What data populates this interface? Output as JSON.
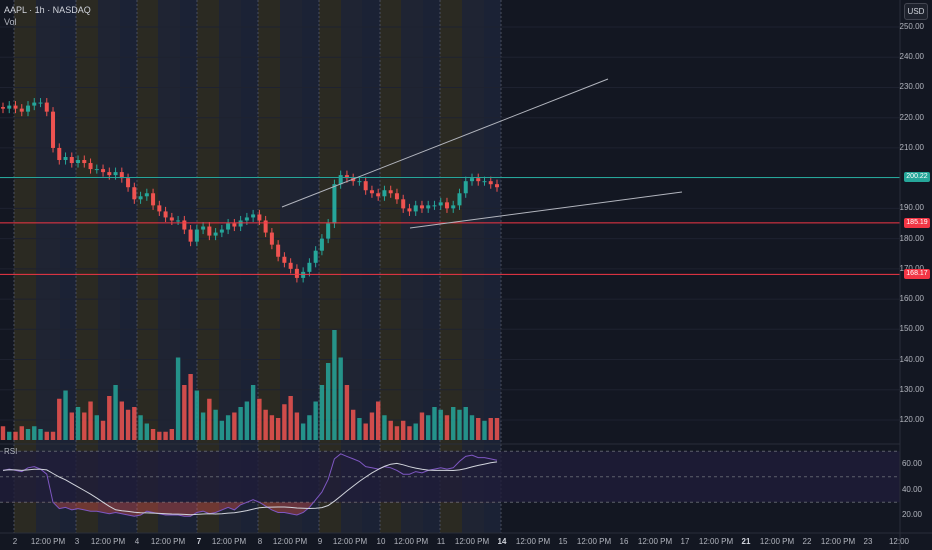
{
  "header": {
    "symbol_line": "AAPL · 1h · NASDAQ",
    "volume_label": "Vol"
  },
  "currency_button": "USD",
  "rsi_label": "RSI",
  "price_axis": [
    "250.00",
    "240.00",
    "230.00",
    "220.00",
    "210.00",
    "190.00",
    "180.00",
    "170.00",
    "160.00",
    "150.00",
    "140.00",
    "130.00",
    "120.00"
  ],
  "rsi_axis": [
    "60.00",
    "40.00",
    "20.00"
  ],
  "price_tags": [
    {
      "label": "200.22",
      "value": 200.22,
      "color": "#26a69a"
    },
    {
      "label": "185.19",
      "value": 185.19,
      "color": "#f23645"
    },
    {
      "label": "168.17",
      "value": 168.17,
      "color": "#f23645"
    }
  ],
  "time_axis": [
    "2",
    "12:00 PM",
    "3",
    "12:00 PM",
    "4",
    "12:00 PM",
    "7",
    "12:00 PM",
    "8",
    "12:00 PM",
    "9",
    "12:00 PM",
    "10",
    "12:00 PM",
    "11",
    "12:00 PM",
    "14",
    "12:00 PM",
    "15",
    "12:00 PM",
    "16",
    "12:00 PM",
    "17",
    "12:00 PM",
    "21",
    "12:00 PM",
    "22",
    "12:00 PM",
    "23",
    "12:00"
  ],
  "time_axis_bold": [
    "7",
    "14",
    "21"
  ],
  "colors": {
    "up": "#26a69a",
    "down": "#ef5350",
    "rsi_line": "#7e57c2",
    "ma_line": "#d1d4dc",
    "trendline": "#b2b5be"
  },
  "chart_data": {
    "type": "candlestick",
    "price_range": [
      150,
      255
    ],
    "close_series": [
      223,
      224,
      223,
      222,
      224,
      225,
      225,
      222,
      210,
      206,
      207,
      205,
      206,
      205,
      203,
      203,
      202,
      201,
      202,
      200,
      197,
      193,
      194,
      195,
      191,
      189,
      187,
      186,
      186,
      183,
      179,
      183,
      184,
      181,
      182,
      183,
      185,
      184,
      186,
      187,
      188,
      186,
      182,
      178,
      174,
      172,
      170,
      167,
      169,
      172,
      176,
      180,
      185,
      198,
      201,
      200,
      199,
      199,
      196,
      195,
      194,
      196,
      195,
      193,
      190,
      189,
      191,
      190,
      191,
      191,
      192,
      190,
      191,
      195,
      199,
      200,
      199,
      199,
      198,
      197
    ],
    "volume_series": [
      5,
      3,
      3,
      5,
      4,
      5,
      4,
      3,
      3,
      15,
      18,
      10,
      12,
      10,
      14,
      9,
      7,
      16,
      20,
      14,
      11,
      12,
      9,
      6,
      4,
      3,
      3,
      4,
      30,
      20,
      24,
      18,
      10,
      15,
      11,
      7,
      9,
      10,
      12,
      14,
      20,
      15,
      11,
      9,
      8,
      13,
      16,
      10,
      6,
      9,
      14,
      20,
      28,
      40,
      30,
      20,
      11,
      8,
      6,
      10,
      14,
      9,
      7,
      5,
      7,
      5,
      6,
      10,
      9,
      12,
      11,
      9,
      12,
      11,
      12,
      9,
      8,
      7,
      8,
      8
    ],
    "rsi_range": [
      15,
      75
    ],
    "rsi_series": [
      55,
      56,
      55,
      54,
      57,
      58,
      56,
      52,
      30,
      25,
      26,
      24,
      25,
      24,
      23,
      23,
      22,
      21,
      22,
      21,
      20,
      19,
      20,
      23,
      22,
      21,
      20,
      20,
      20,
      19,
      19,
      22,
      23,
      21,
      22,
      24,
      26,
      24,
      28,
      30,
      32,
      30,
      27,
      24,
      22,
      22,
      21,
      20,
      22,
      26,
      32,
      38,
      48,
      64,
      68,
      66,
      64,
      62,
      58,
      57,
      56,
      58,
      57,
      55,
      52,
      52,
      54,
      53,
      55,
      56,
      57,
      56,
      57,
      62,
      66,
      67,
      65,
      65,
      64,
      63
    ],
    "levels": [
      200.22,
      185.19,
      168.17
    ],
    "rsi_bands": [
      70,
      50,
      30
    ]
  }
}
